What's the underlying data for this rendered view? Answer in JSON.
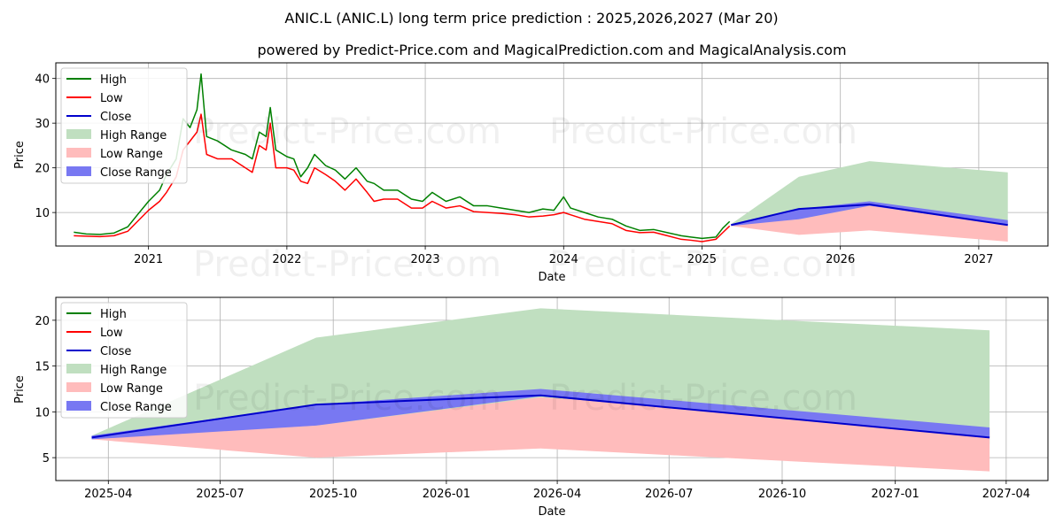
{
  "title": "ANIC.L (ANIC.L) long term price prediction : 2025,2026,2027 (Mar 20)",
  "subtitle": "powered by Predict-Price.com and MagicalPrediction.com and MagicalAnalysis.com",
  "watermark": "Predict-Price.com",
  "legend": {
    "high": "High",
    "low": "Low",
    "close": "Close",
    "high_range": "High Range",
    "low_range": "Low Range",
    "close_range": "Close Range"
  },
  "colors": {
    "high": "#008000",
    "low": "#ff0000",
    "close": "#0000cc",
    "high_range": "#c0dfc0",
    "low_range": "#ffbcbc",
    "close_range": "#7878f2"
  },
  "chart_data": [
    {
      "type": "line",
      "xlabel": "Date",
      "ylabel": "Price",
      "xlim": [
        2020.33,
        2027.5
      ],
      "ylim": [
        2.5,
        43.5
      ],
      "x_ticks": [
        "2021",
        "2022",
        "2023",
        "2024",
        "2025",
        "2026",
        "2027"
      ],
      "x_tick_values": [
        2021.0,
        2022.0,
        2023.0,
        2024.0,
        2025.0,
        2026.0,
        2027.0
      ],
      "y_ticks": [
        10,
        20,
        30,
        40
      ],
      "grid": true,
      "legend_position": "top-left",
      "history": {
        "x": [
          2020.46,
          2020.55,
          2020.65,
          2020.75,
          2020.85,
          2020.92,
          2021.0,
          2021.08,
          2021.13,
          2021.2,
          2021.25,
          2021.3,
          2021.35,
          2021.38,
          2021.42,
          2021.5,
          2021.6,
          2021.7,
          2021.75,
          2021.8,
          2021.85,
          2021.88,
          2021.92,
          2022.0,
          2022.05,
          2022.1,
          2022.15,
          2022.2,
          2022.28,
          2022.35,
          2022.42,
          2022.5,
          2022.58,
          2022.63,
          2022.7,
          2022.8,
          2022.9,
          2022.98,
          2023.05,
          2023.15,
          2023.25,
          2023.35,
          2023.45,
          2023.55,
          2023.65,
          2023.75,
          2023.85,
          2023.93,
          2024.0,
          2024.05,
          2024.15,
          2024.25,
          2024.35,
          2024.45,
          2024.55,
          2024.65,
          2024.75,
          2024.85,
          2024.92,
          2025.0,
          2025.1,
          2025.15,
          2025.2
        ],
        "high": [
          5.6,
          5.2,
          5.1,
          5.4,
          6.8,
          9.5,
          12.5,
          15.0,
          18.5,
          22.0,
          31.0,
          29.0,
          33.0,
          41.0,
          27.0,
          26.0,
          24.0,
          23.0,
          22.0,
          28.0,
          27.0,
          33.5,
          24.0,
          22.5,
          22.0,
          18.0,
          20.0,
          23.0,
          20.5,
          19.5,
          17.5,
          20.0,
          17.0,
          16.5,
          15.0,
          15.0,
          13.0,
          12.5,
          14.5,
          12.5,
          13.5,
          11.5,
          11.5,
          11.0,
          10.5,
          10.0,
          10.8,
          10.5,
          13.5,
          11.0,
          10.0,
          9.0,
          8.5,
          7.0,
          6.0,
          6.2,
          5.5,
          4.8,
          4.5,
          4.2,
          4.5,
          6.5,
          8.0
        ],
        "low": [
          4.8,
          4.7,
          4.6,
          4.8,
          5.8,
          8.0,
          10.5,
          12.5,
          14.5,
          18.0,
          24.0,
          26.0,
          28.0,
          32.0,
          23.0,
          22.0,
          22.0,
          20.0,
          19.0,
          25.0,
          24.0,
          30.0,
          20.0,
          20.0,
          19.5,
          17.0,
          16.5,
          20.0,
          18.5,
          17.0,
          15.0,
          17.5,
          14.5,
          12.5,
          13.0,
          13.0,
          11.0,
          11.0,
          12.5,
          11.0,
          11.5,
          10.2,
          10.0,
          9.8,
          9.5,
          9.0,
          9.2,
          9.5,
          10.0,
          9.5,
          8.5,
          8.0,
          7.5,
          6.0,
          5.5,
          5.6,
          4.8,
          4.0,
          3.8,
          3.5,
          4.0,
          5.5,
          7.0
        ]
      },
      "forecast": {
        "x": [
          2025.21,
          2025.7,
          2026.21,
          2027.21
        ],
        "close": [
          7.2,
          10.8,
          11.8,
          7.2
        ],
        "high_range": [
          [
            7.4,
            7.4
          ],
          [
            8.5,
            18.0
          ],
          [
            9.5,
            21.5
          ],
          [
            6.5,
            19.0
          ]
        ],
        "low_range": [
          [
            7.0,
            7.2
          ],
          [
            5.0,
            8.5
          ],
          [
            6.0,
            11.5
          ],
          [
            3.5,
            8.0
          ]
        ],
        "close_range": [
          [
            7.0,
            7.4
          ],
          [
            8.5,
            10.8
          ],
          [
            11.5,
            12.5
          ],
          [
            7.2,
            8.3
          ]
        ]
      }
    },
    {
      "type": "line",
      "xlabel": "Date",
      "ylabel": "Price",
      "xlim": [
        2025.13,
        2027.34
      ],
      "ylim": [
        2.5,
        22.5
      ],
      "x_ticks": [
        "2025-04",
        "2025-07",
        "2025-10",
        "2026-01",
        "2026-04",
        "2026-07",
        "2026-10",
        "2027-01",
        "2027-04"
      ],
      "x_tick_values": [
        2025.247,
        2025.496,
        2025.748,
        2026.0,
        2026.247,
        2026.496,
        2026.748,
        2027.0,
        2027.247
      ],
      "y_ticks": [
        5,
        10,
        15,
        20
      ],
      "grid": true,
      "legend_position": "top-left",
      "forecast": {
        "x": [
          2025.21,
          2025.71,
          2026.21,
          2027.21
        ],
        "close": [
          7.2,
          10.8,
          11.8,
          7.2
        ],
        "high_range": [
          [
            7.4,
            7.4
          ],
          [
            8.5,
            18.1
          ],
          [
            9.5,
            21.3
          ],
          [
            6.5,
            18.9
          ]
        ],
        "low_range": [
          [
            7.0,
            7.2
          ],
          [
            5.0,
            8.5
          ],
          [
            6.0,
            11.6
          ],
          [
            3.5,
            8.2
          ]
        ],
        "close_range": [
          [
            7.0,
            7.4
          ],
          [
            8.5,
            10.8
          ],
          [
            11.7,
            12.5
          ],
          [
            7.2,
            8.3
          ]
        ]
      }
    }
  ]
}
